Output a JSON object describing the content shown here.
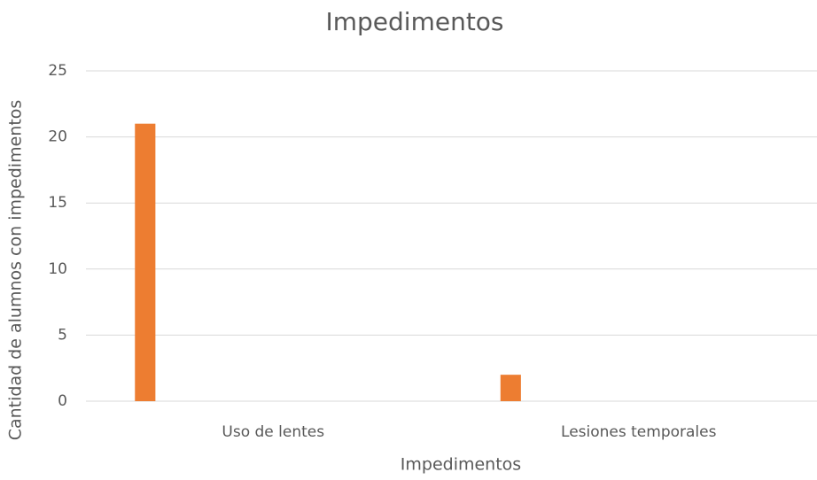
{
  "chart_data": {
    "type": "bar",
    "title": "Impedimentos",
    "x_label": "Impedimentos",
    "y_label": "Cantidad de alumnos con impedimentos",
    "categories": [
      "Uso de lentes",
      "Lesiones temporales"
    ],
    "values": [
      21,
      2
    ],
    "color": "#ed7d31",
    "ylim": [
      0,
      25
    ],
    "yticks": [
      0,
      5,
      10,
      15,
      20,
      25
    ],
    "grid": true
  }
}
